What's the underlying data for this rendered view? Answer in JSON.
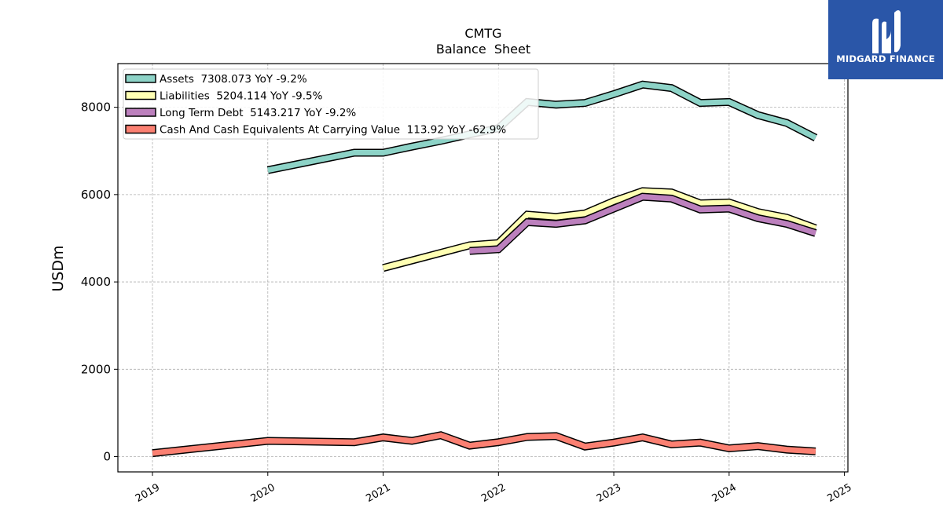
{
  "chart_data": {
    "type": "line",
    "title": "CMTG",
    "subtitle": "Balance  Sheet",
    "ylabel": "USDm",
    "xlabel": "",
    "xlim": [
      2018.7,
      2025.03
    ],
    "ylim": [
      -350,
      9000
    ],
    "yticks": [
      0,
      2000,
      4000,
      6000,
      8000
    ],
    "xticks": [
      "2019",
      "2020",
      "2021",
      "2022",
      "2023",
      "2024",
      "2025"
    ],
    "grid": true,
    "legend_position": "top-left",
    "series": [
      {
        "name": "Assets",
        "legend": "Assets  7308.073 YoY -9.2%",
        "color": "#8dd3c7",
        "x": [
          2020.0,
          2020.75,
          2021.0,
          2021.25,
          2021.5,
          2021.75,
          2022.0,
          2022.25,
          2022.5,
          2022.75,
          2023.0,
          2023.25,
          2023.5,
          2023.75,
          2024.0,
          2024.25,
          2024.5,
          2024.75
        ],
        "values": [
          6560,
          6960,
          6960,
          7100,
          7230,
          7380,
          7520,
          8120,
          8060,
          8100,
          8300,
          8520,
          8440,
          8100,
          8120,
          7820,
          7640,
          7300
        ]
      },
      {
        "name": "Liabilities",
        "legend": "Liabilities  5204.114 YoY -9.5%",
        "color": "#ffffb3",
        "x": [
          2021.0,
          2021.75,
          2022.0,
          2022.25,
          2022.5,
          2022.75,
          2023.0,
          2023.25,
          2023.5,
          2023.75,
          2024.0,
          2024.25,
          2024.5,
          2024.75
        ],
        "values": [
          4320,
          4840,
          4890,
          5540,
          5490,
          5570,
          5850,
          6080,
          6050,
          5800,
          5820,
          5600,
          5470,
          5230
        ]
      },
      {
        "name": "Long Term Debt",
        "legend": "Long Term Debt  5143.217 YoY -9.2%",
        "color": "#bc80bd",
        "x": [
          2021.75,
          2022.0,
          2022.25,
          2022.5,
          2022.75,
          2023.0,
          2023.25,
          2023.5,
          2023.75,
          2024.0,
          2024.25,
          2024.5,
          2024.75
        ],
        "values": [
          4710,
          4750,
          5370,
          5330,
          5410,
          5680,
          5950,
          5910,
          5660,
          5680,
          5460,
          5330,
          5120
        ]
      },
      {
        "name": "Cash And Cash Equivalents At Carrying Value",
        "legend": "Cash And Cash Equivalents At Carrying Value  113.92 YoY -62.9%",
        "color": "#fb8072",
        "x": [
          2019.0,
          2020.0,
          2020.75,
          2021.0,
          2021.25,
          2021.5,
          2021.75,
          2022.0,
          2022.25,
          2022.5,
          2022.75,
          2023.0,
          2023.25,
          2023.5,
          2023.75,
          2024.0,
          2024.25,
          2024.5,
          2024.75
        ],
        "values": [
          80,
          360,
          330,
          440,
          360,
          490,
          250,
          330,
          450,
          470,
          230,
          320,
          440,
          280,
          320,
          190,
          240,
          160,
          120
        ]
      }
    ]
  },
  "logo": {
    "text": "MIDGARD FINANCE",
    "color": "#2a56a8"
  }
}
